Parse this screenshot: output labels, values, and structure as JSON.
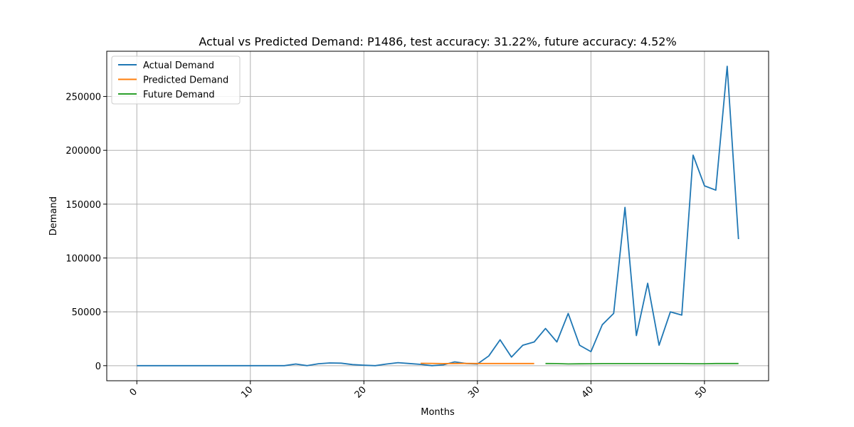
{
  "chart_data": {
    "type": "line",
    "title": "Actual vs Predicted Demand: P1486, test accuracy: 31.22%, future accuracy: 4.52%",
    "xlabel": "Months",
    "ylabel": "Demand",
    "xlim": [
      -2.65,
      55.65
    ],
    "ylim": [
      -14000,
      292000
    ],
    "xticks": [
      0,
      10,
      20,
      30,
      40,
      50
    ],
    "yticks": [
      0,
      50000,
      100000,
      150000,
      200000,
      250000
    ],
    "xtick_labels": [
      "0",
      "10",
      "20",
      "30",
      "40",
      "50"
    ],
    "ytick_labels": [
      "0",
      "50000",
      "100000",
      "150000",
      "200000",
      "250000"
    ],
    "xtick_rotation": 45,
    "grid": true,
    "legend_position": "top-left",
    "series": [
      {
        "name": "Actual Demand",
        "color": "#1f77b4",
        "x": [
          0,
          1,
          2,
          3,
          4,
          5,
          6,
          7,
          8,
          9,
          10,
          11,
          12,
          13,
          14,
          15,
          16,
          17,
          18,
          19,
          20,
          21,
          22,
          23,
          24,
          25,
          26,
          27,
          28,
          29,
          30,
          31,
          32,
          33,
          34,
          35,
          36,
          37,
          38,
          39,
          40,
          41,
          42,
          43,
          44,
          45,
          46,
          47,
          48,
          49,
          50,
          51,
          52,
          53
        ],
        "y": [
          0,
          0,
          0,
          0,
          0,
          0,
          0,
          0,
          0,
          0,
          0,
          0,
          0,
          0,
          1500,
          0,
          1800,
          2500,
          2300,
          1000,
          400,
          0,
          1500,
          2800,
          2000,
          1200,
          0,
          800,
          3500,
          2000,
          1500,
          9000,
          24000,
          8000,
          19000,
          22000,
          34500,
          22000,
          48500,
          19000,
          13000,
          38000,
          48500,
          147000,
          28000,
          76500,
          19000,
          50000,
          47000,
          195500,
          167000,
          163000,
          278000,
          117500
        ]
      },
      {
        "name": "Predicted Demand",
        "color": "#ff7f0e",
        "x": [
          25,
          26,
          27,
          28,
          29,
          30,
          31,
          32,
          33,
          34,
          35
        ],
        "y": [
          2200,
          2100,
          1900,
          2000,
          2100,
          2000,
          2000,
          2000,
          2000,
          2000,
          2000
        ]
      },
      {
        "name": "Future Demand",
        "color": "#2ca02c",
        "x": [
          36,
          37,
          38,
          39,
          40,
          41,
          42,
          43,
          44,
          45,
          46,
          47,
          48,
          49,
          50,
          51,
          52,
          53
        ],
        "y": [
          2000,
          1900,
          1600,
          1700,
          1800,
          1900,
          1900,
          1900,
          1900,
          1900,
          1900,
          1900,
          1900,
          1800,
          1800,
          2000,
          2000,
          2000
        ]
      }
    ]
  }
}
